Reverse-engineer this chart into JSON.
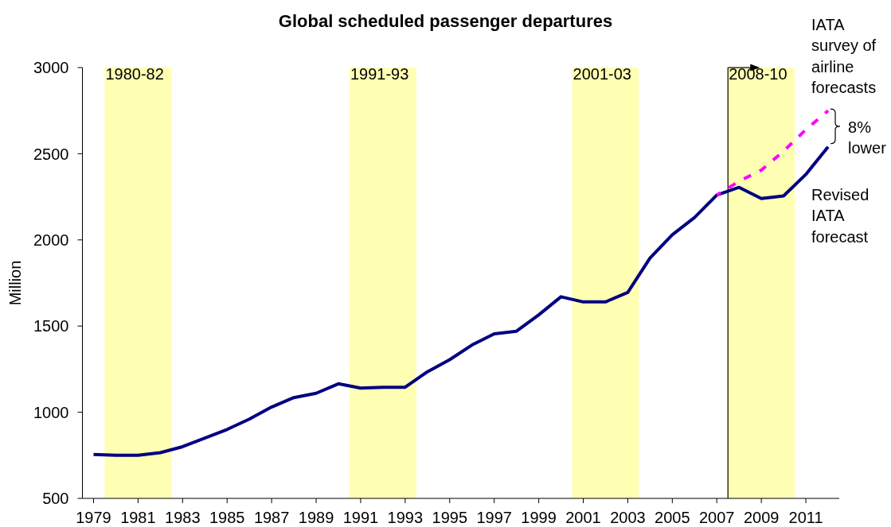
{
  "chart_data": {
    "type": "line",
    "title": "Global scheduled passenger departures",
    "ylabel": "Million",
    "x": [
      1979,
      1980,
      1981,
      1982,
      1983,
      1984,
      1985,
      1986,
      1987,
      1988,
      1989,
      1990,
      1991,
      1992,
      1993,
      1994,
      1995,
      1996,
      1997,
      1998,
      1999,
      2000,
      2001,
      2002,
      2003,
      2004,
      2005,
      2006,
      2007,
      2008,
      2009,
      2010,
      2011,
      2012
    ],
    "series": [
      {
        "name": "Revised IATA forecast",
        "color": "#000080",
        "values": [
          755,
          750,
          750,
          765,
          800,
          850,
          900,
          960,
          1030,
          1085,
          1110,
          1165,
          1140,
          1145,
          1145,
          1235,
          1305,
          1390,
          1455,
          1470,
          1565,
          1670,
          1640,
          1640,
          1695,
          1895,
          2030,
          2130,
          2260,
          2305,
          2240,
          2255,
          2380,
          2540
        ]
      },
      {
        "name": "IATA survey of airline forecasts",
        "color": "#ff00ff",
        "line_style": "dashed",
        "values": [
          null,
          null,
          null,
          null,
          null,
          null,
          null,
          null,
          null,
          null,
          null,
          null,
          null,
          null,
          null,
          null,
          null,
          null,
          null,
          null,
          null,
          null,
          null,
          null,
          null,
          null,
          null,
          null,
          2260,
          2340,
          2405,
          2515,
          2640,
          2750
        ]
      }
    ],
    "xlim": [
      1978.5,
      2012.5
    ],
    "xticks": [
      1979,
      1981,
      1983,
      1985,
      1987,
      1989,
      1991,
      1993,
      1995,
      1997,
      1999,
      2001,
      2003,
      2005,
      2007,
      2009,
      2011
    ],
    "ylim": [
      500,
      3000
    ],
    "yticks": [
      500,
      1000,
      1500,
      2000,
      2500,
      3000
    ],
    "marker": "none",
    "line_style": "solid",
    "bands": [
      {
        "axis": "x",
        "from": 1979.5,
        "to": 1982.5,
        "label": "1980-82",
        "color": "#ffffb3"
      },
      {
        "axis": "x",
        "from": 1990.5,
        "to": 1993.5,
        "label": "1991-93",
        "color": "#ffffb3"
      },
      {
        "axis": "x",
        "from": 2000.5,
        "to": 2003.5,
        "label": "2001-03",
        "color": "#ffffb3"
      },
      {
        "axis": "x",
        "from": 2007.5,
        "to": 2010.5,
        "label": "2008-10",
        "color": "#ffffb3"
      }
    ],
    "ref_lines": [
      {
        "axis": "x",
        "value": 2007.5,
        "color": "#000000"
      }
    ],
    "annotations": [
      "8% lower"
    ]
  }
}
